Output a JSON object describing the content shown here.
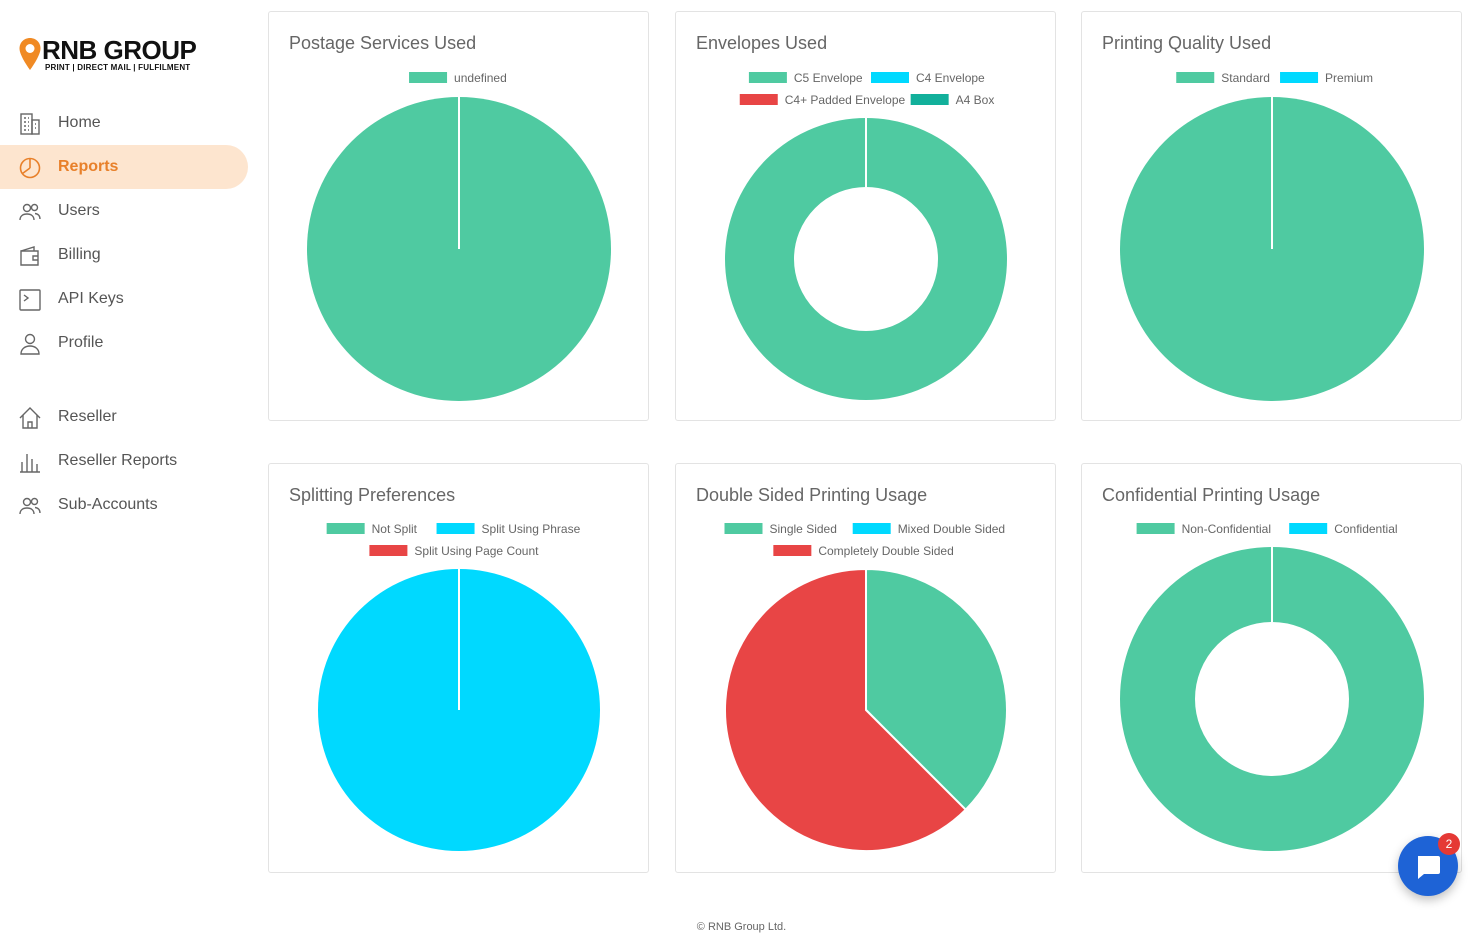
{
  "brand": {
    "name": "RNB GROUP",
    "tagline": "PRINT | DIRECT MAIL | FULFILMENT",
    "accent": "#f08a24"
  },
  "nav": [
    {
      "label": "Home",
      "icon": "building-icon",
      "active": false
    },
    {
      "label": "Reports",
      "icon": "pie-chart-icon",
      "active": true
    },
    {
      "label": "Users",
      "icon": "users-icon",
      "active": false
    },
    {
      "label": "Billing",
      "icon": "wallet-icon",
      "active": false
    },
    {
      "label": "API Keys",
      "icon": "terminal-icon",
      "active": false
    },
    {
      "label": "Profile",
      "icon": "user-icon",
      "active": false
    }
  ],
  "nav_reseller": [
    {
      "label": "Reseller",
      "icon": "home-icon"
    },
    {
      "label": "Reseller Reports",
      "icon": "bar-chart-icon"
    },
    {
      "label": "Sub-Accounts",
      "icon": "users-icon"
    }
  ],
  "footer": "© RNB Group Ltd.",
  "chat": {
    "badge": "2"
  },
  "chart_data": [
    {
      "type": "pie",
      "title": "Postage Services Used",
      "donut": false,
      "categories": [
        "undefined"
      ],
      "values": [
        1
      ],
      "colors": [
        "#4fcaa1"
      ]
    },
    {
      "type": "pie",
      "title": "Envelopes Used",
      "donut": true,
      "categories": [
        "C5 Envelope",
        "C4 Envelope",
        "C4+ Padded Envelope",
        "A4 Box"
      ],
      "values": [
        1,
        0,
        0,
        0
      ],
      "colors": [
        "#4fcaa1",
        "#00d9ff",
        "#e84545",
        "#12b09b"
      ]
    },
    {
      "type": "pie",
      "title": "Printing Quality Used",
      "donut": false,
      "categories": [
        "Standard",
        "Premium"
      ],
      "values": [
        1,
        0
      ],
      "colors": [
        "#4fcaa1",
        "#00d9ff"
      ]
    },
    {
      "type": "pie",
      "title": "Splitting Preferences",
      "donut": false,
      "categories": [
        "Not Split",
        "Split Using Phrase",
        "Split Using Page Count"
      ],
      "values": [
        0,
        1,
        0
      ],
      "colors": [
        "#4fcaa1",
        "#00d9ff",
        "#e84545"
      ]
    },
    {
      "type": "pie",
      "title": "Double Sided Printing Usage",
      "donut": false,
      "categories": [
        "Single Sided",
        "Mixed Double Sided",
        "Completely Double Sided"
      ],
      "values": [
        0.375,
        0,
        0.625
      ],
      "colors": [
        "#4fcaa1",
        "#00d9ff",
        "#e84545"
      ]
    },
    {
      "type": "pie",
      "title": "Confidential Printing Usage",
      "donut": true,
      "categories": [
        "Non-Confidential",
        "Confidential"
      ],
      "values": [
        1,
        0
      ],
      "colors": [
        "#4fcaa1",
        "#00d9ff"
      ]
    }
  ]
}
